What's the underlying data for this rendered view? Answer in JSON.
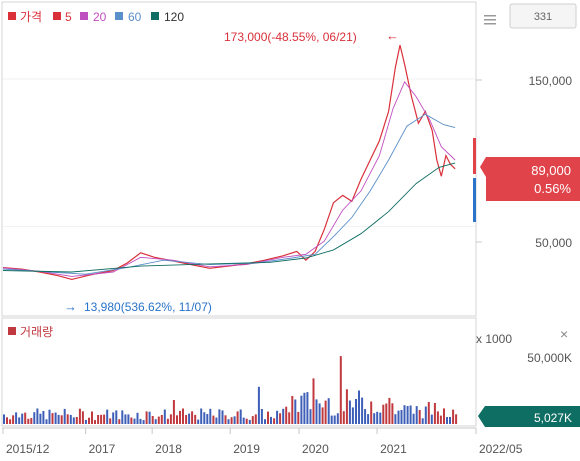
{
  "legend": {
    "items": [
      {
        "label": "가격",
        "color": "#d9303a"
      },
      {
        "label": "5",
        "color": "#d9303a"
      },
      {
        "label": "20",
        "color": "#c04fc0"
      },
      {
        "label": "60",
        "color": "#5b8fc9"
      },
      {
        "label": "120",
        "color": "#0f6e63"
      }
    ]
  },
  "top_button": "331",
  "menu_icon": "menu-icon",
  "volume_close": "×",
  "chart_data": [
    {
      "type": "line",
      "name": "price-panel",
      "ylim": [
        0,
        190000
      ],
      "yticks": [
        {
          "value": 150000,
          "label": "150,000"
        },
        {
          "value": 50000,
          "label": "50,000"
        }
      ],
      "xticks": [
        {
          "label": "2015/12",
          "t": 0
        },
        {
          "label": "2017",
          "t": 0.18
        },
        {
          "label": "2018",
          "t": 0.325
        },
        {
          "label": "2019",
          "t": 0.495
        },
        {
          "label": "2020",
          "t": 0.645
        },
        {
          "label": "2021",
          "t": 0.815
        },
        {
          "label": "2022/05",
          "t": 1.0
        }
      ],
      "series": [
        {
          "color": "#d9303a",
          "points": [
            [
              0,
              22000
            ],
            [
              0.04,
              21000
            ],
            [
              0.08,
              19000
            ],
            [
              0.12,
              16500
            ],
            [
              0.15,
              13980
            ],
            [
              0.19,
              17000
            ],
            [
              0.24,
              20000
            ],
            [
              0.27,
              25000
            ],
            [
              0.3,
              32000
            ],
            [
              0.33,
              29000
            ],
            [
              0.37,
              26500
            ],
            [
              0.41,
              24000
            ],
            [
              0.45,
              21500
            ],
            [
              0.49,
              23000
            ],
            [
              0.53,
              24500
            ],
            [
              0.57,
              27000
            ],
            [
              0.61,
              30000
            ],
            [
              0.64,
              33000
            ],
            [
              0.66,
              27000
            ],
            [
              0.68,
              33000
            ],
            [
              0.7,
              48000
            ],
            [
              0.72,
              66000
            ],
            [
              0.74,
              71000
            ],
            [
              0.76,
              67000
            ],
            [
              0.78,
              82000
            ],
            [
              0.8,
              95000
            ],
            [
              0.82,
              108000
            ],
            [
              0.84,
              128000
            ],
            [
              0.855,
              158000
            ],
            [
              0.865,
              173000
            ],
            [
              0.875,
              160000
            ],
            [
              0.89,
              138000
            ],
            [
              0.905,
              120000
            ],
            [
              0.92,
              128000
            ],
            [
              0.935,
              115000
            ],
            [
              0.945,
              95000
            ],
            [
              0.955,
              84000
            ],
            [
              0.965,
              98000
            ],
            [
              0.975,
              92000
            ],
            [
              0.985,
              89000
            ]
          ]
        },
        {
          "color": "#c04fc0",
          "points": [
            [
              0,
              21800
            ],
            [
              0.08,
              19500
            ],
            [
              0.15,
              16000
            ],
            [
              0.24,
              19000
            ],
            [
              0.3,
              29000
            ],
            [
              0.37,
              27000
            ],
            [
              0.45,
              22500
            ],
            [
              0.53,
              24000
            ],
            [
              0.61,
              29000
            ],
            [
              0.66,
              31000
            ],
            [
              0.7,
              40000
            ],
            [
              0.74,
              61000
            ],
            [
              0.78,
              74000
            ],
            [
              0.82,
              98000
            ],
            [
              0.85,
              130000
            ],
            [
              0.875,
              148000
            ],
            [
              0.9,
              138000
            ],
            [
              0.93,
              122000
            ],
            [
              0.955,
              104000
            ],
            [
              0.985,
              95000
            ]
          ]
        },
        {
          "color": "#5b8fc9",
          "points": [
            [
              0,
              21000
            ],
            [
              0.1,
              19000
            ],
            [
              0.18,
              17500
            ],
            [
              0.27,
              22000
            ],
            [
              0.35,
              27000
            ],
            [
              0.45,
              24000
            ],
            [
              0.55,
              25000
            ],
            [
              0.63,
              28500
            ],
            [
              0.68,
              31000
            ],
            [
              0.72,
              43000
            ],
            [
              0.76,
              56000
            ],
            [
              0.8,
              74000
            ],
            [
              0.84,
              95000
            ],
            [
              0.88,
              118000
            ],
            [
              0.92,
              126000
            ],
            [
              0.96,
              119000
            ],
            [
              0.985,
              117000
            ]
          ]
        },
        {
          "color": "#0f6e63",
          "points": [
            [
              0,
              20000
            ],
            [
              0.15,
              19000
            ],
            [
              0.3,
              23000
            ],
            [
              0.45,
              24500
            ],
            [
              0.58,
              25500
            ],
            [
              0.66,
              28500
            ],
            [
              0.72,
              34000
            ],
            [
              0.78,
              45000
            ],
            [
              0.84,
              60000
            ],
            [
              0.9,
              79000
            ],
            [
              0.95,
              90000
            ],
            [
              0.985,
              93000
            ]
          ]
        }
      ],
      "annotations": [
        {
          "text": "173,000(-48.55%, 06/21)",
          "arrow": "←",
          "color": "#d9303a"
        },
        {
          "text": "13,980(536.62%, 11/07)",
          "arrow": "→",
          "color": "#2a73c9"
        }
      ],
      "current": {
        "price": "89,000",
        "change": "0.56%",
        "color": "#e0434a"
      }
    },
    {
      "type": "bar",
      "name": "volume-panel",
      "title": "거래량",
      "unit_label": "x 1000",
      "yticks": [
        {
          "value": 50000,
          "label": "50,000K"
        }
      ],
      "ylim": [
        0,
        70000
      ],
      "current_label": "5,027K",
      "current_color": "#0f6e63",
      "series": [
        {
          "name": "up",
          "color": "#c0393f"
        },
        {
          "name": "down",
          "color": "#3d5fb8"
        }
      ]
    }
  ]
}
